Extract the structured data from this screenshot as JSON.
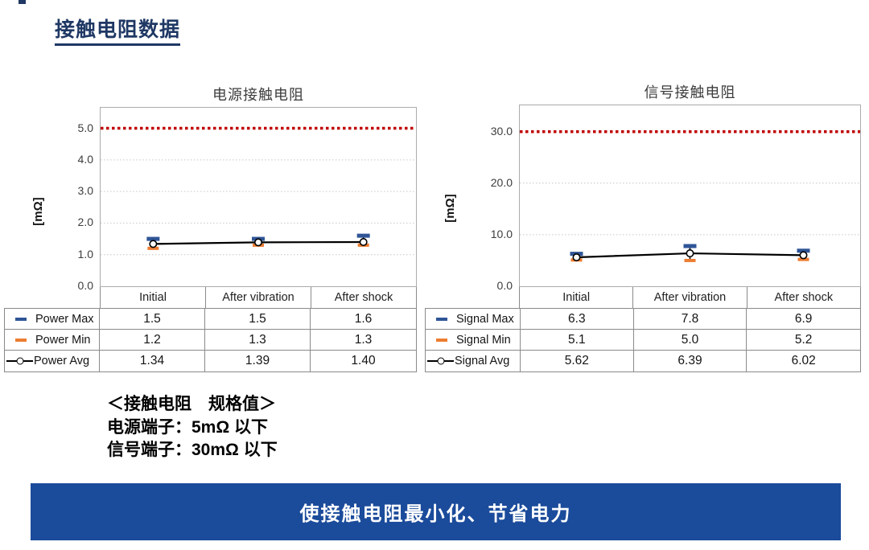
{
  "page": {
    "title": "接触电阻数据"
  },
  "chart_data": [
    {
      "type": "line",
      "title": "电源接触电阻",
      "ylabel": "[mΩ]",
      "categories": [
        "Initial",
        "After vibration",
        "After shock"
      ],
      "series": [
        {
          "name": "Power Max",
          "role": "max",
          "color": "#2f5597",
          "values": [
            1.5,
            1.5,
            1.6
          ],
          "display": [
            "1.5",
            "1.5",
            "1.6"
          ]
        },
        {
          "name": "Power Min",
          "role": "min",
          "color": "#ed7d31",
          "values": [
            1.2,
            1.3,
            1.3
          ],
          "display": [
            "1.2",
            "1.3",
            "1.3"
          ]
        },
        {
          "name": "Power Avg",
          "role": "avg",
          "color": "#000000",
          "values": [
            1.34,
            1.39,
            1.4
          ],
          "display": [
            "1.34",
            "1.39",
            "1.40"
          ]
        }
      ],
      "ylim": [
        0,
        5.65
      ],
      "yticks": {
        "values": [
          0,
          1,
          2,
          3,
          4,
          5
        ],
        "labels": [
          "0.0",
          "1.0",
          "2.0",
          "3.0",
          "4.0",
          "5.0"
        ]
      },
      "spec_line": {
        "value": 5.0,
        "color": "#c00000"
      },
      "grid": "horizontal-dotted",
      "legend_position": "table-left"
    },
    {
      "type": "line",
      "title": "信号接触电阻",
      "ylabel": "[mΩ]",
      "categories": [
        "Initial",
        "After vibration",
        "After shock"
      ],
      "series": [
        {
          "name": "Signal Max",
          "role": "max",
          "color": "#2f5597",
          "values": [
            6.3,
            7.8,
            6.9
          ],
          "display": [
            "6.3",
            "7.8",
            "6.9"
          ]
        },
        {
          "name": "Signal Min",
          "role": "min",
          "color": "#ed7d31",
          "values": [
            5.1,
            5.0,
            5.2
          ],
          "display": [
            "5.1",
            "5.0",
            "5.2"
          ]
        },
        {
          "name": "Signal Avg",
          "role": "avg",
          "color": "#000000",
          "values": [
            5.62,
            6.39,
            6.02
          ],
          "display": [
            "5.62",
            "6.39",
            "6.02"
          ]
        }
      ],
      "ylim": [
        0,
        35.1
      ],
      "yticks": {
        "values": [
          0,
          10,
          20,
          30
        ],
        "labels": [
          "0.0",
          "10.0",
          "20.0",
          "30.0"
        ]
      },
      "spec_line": {
        "value": 30.0,
        "color": "#c00000"
      },
      "grid": "horizontal-dotted",
      "legend_position": "table-left"
    }
  ],
  "spec": {
    "heading": "＜接触电阻　规格值＞",
    "lines": [
      "电源端子：5mΩ 以下",
      "信号端子：30mΩ 以下"
    ]
  },
  "banner": {
    "text": "使接触电阻最小化、节省电力"
  },
  "colors": {
    "title": "#1f3864",
    "banner": "#1b4b9b",
    "spec_line": "#c00000",
    "max_marker": "#2f5597",
    "min_marker": "#ed7d31",
    "avg_marker": "#000000"
  }
}
